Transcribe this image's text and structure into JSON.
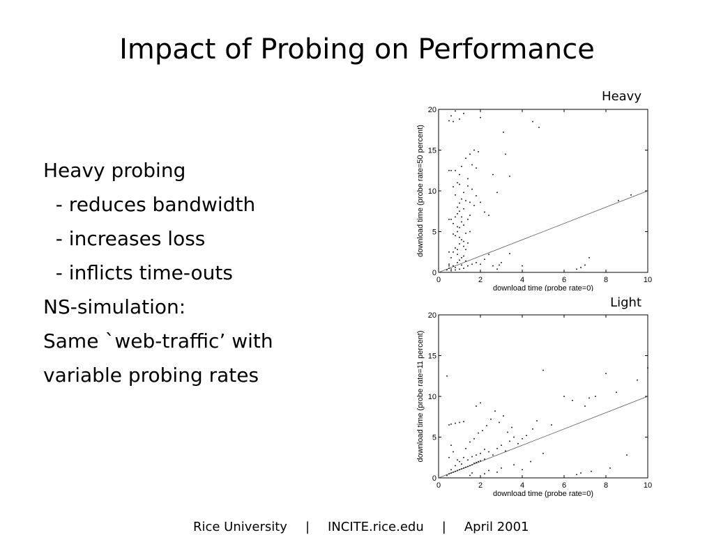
{
  "slide": {
    "title": "Impact of Probing on Performance",
    "bullets": [
      "Heavy probing",
      "  - reduces bandwidth",
      "  - increases loss",
      "  - inflicts time-outs",
      "",
      "NS-simulation:",
      "Same `web-traffic’ with",
      "variable probing rates"
    ],
    "footer": {
      "left": "Rice University",
      "separator": "|",
      "middle": "INCITE.rice.edu",
      "right": "April 2001"
    }
  },
  "chart_data": [
    {
      "type": "scatter",
      "caption": "Heavy",
      "xlabel": "download time (probe rate=0)",
      "ylabel": "download time (probe rate=50 percent)",
      "xlim": [
        0,
        10
      ],
      "ylim": [
        0,
        20
      ],
      "xticks": [
        0,
        2,
        4,
        6,
        8,
        10
      ],
      "yticks": [
        0,
        5,
        10,
        15,
        20
      ],
      "reference_line": {
        "from": [
          0,
          0
        ],
        "to": [
          10,
          10
        ]
      },
      "points": [
        [
          0.4,
          0.3
        ],
        [
          0.5,
          0.5
        ],
        [
          0.6,
          0.4
        ],
        [
          0.7,
          0.8
        ],
        [
          0.8,
          0.6
        ],
        [
          0.9,
          1.2
        ],
        [
          1.0,
          1.5
        ],
        [
          1.1,
          0.9
        ],
        [
          1.2,
          2.0
        ],
        [
          0.5,
          1.0
        ],
        [
          0.6,
          1.8
        ],
        [
          0.7,
          2.5
        ],
        [
          0.8,
          3.0
        ],
        [
          0.9,
          2.2
        ],
        [
          1.0,
          3.5
        ],
        [
          1.1,
          4.0
        ],
        [
          1.2,
          3.2
        ],
        [
          1.3,
          2.8
        ],
        [
          0.8,
          4.5
        ],
        [
          0.9,
          5.0
        ],
        [
          1.0,
          5.5
        ],
        [
          0.7,
          6.0
        ],
        [
          0.6,
          6.5
        ],
        [
          0.8,
          6.8
        ],
        [
          0.9,
          7.2
        ],
        [
          1.0,
          7.5
        ],
        [
          1.1,
          6.2
        ],
        [
          1.2,
          5.8
        ],
        [
          1.3,
          4.8
        ],
        [
          1.4,
          3.6
        ],
        [
          0.9,
          8.0
        ],
        [
          1.0,
          8.5
        ],
        [
          1.1,
          9.0
        ],
        [
          0.8,
          9.5
        ],
        [
          1.2,
          7.8
        ],
        [
          1.3,
          8.8
        ],
        [
          1.4,
          6.5
        ],
        [
          1.5,
          5.0
        ],
        [
          0.7,
          10.5
        ],
        [
          0.9,
          11.0
        ],
        [
          1.0,
          12.0
        ],
        [
          0.8,
          12.5
        ],
        [
          0.6,
          12.5
        ],
        [
          1.1,
          13.0
        ],
        [
          1.3,
          14.0
        ],
        [
          1.5,
          14.5
        ],
        [
          1.7,
          15.0
        ],
        [
          1.9,
          14.8
        ],
        [
          1.6,
          13.2
        ],
        [
          1.8,
          12.8
        ],
        [
          1.4,
          11.5
        ],
        [
          1.6,
          10.2
        ],
        [
          1.8,
          9.4
        ],
        [
          2.0,
          8.6
        ],
        [
          2.2,
          7.4
        ],
        [
          2.4,
          7.0
        ],
        [
          2.6,
          12.0
        ],
        [
          2.8,
          9.8
        ],
        [
          3.2,
          14.5
        ],
        [
          3.4,
          11.8
        ],
        [
          3.1,
          17.2
        ],
        [
          4.8,
          17.8
        ],
        [
          4.5,
          18.5
        ],
        [
          2.0,
          19.0
        ],
        [
          1.2,
          19.5
        ],
        [
          0.8,
          19.8
        ],
        [
          0.6,
          19.2
        ],
        [
          0.5,
          18.6
        ],
        [
          0.7,
          18.5
        ],
        [
          1.0,
          18.8
        ],
        [
          0.5,
          6.5
        ],
        [
          0.5,
          12.5
        ],
        [
          0.5,
          2.5
        ],
        [
          0.5,
          0.8
        ],
        [
          0.6,
          0.2
        ],
        [
          0.8,
          0.3
        ],
        [
          1.0,
          0.4
        ],
        [
          1.2,
          0.5
        ],
        [
          1.4,
          0.8
        ],
        [
          1.6,
          1.0
        ],
        [
          1.8,
          1.2
        ],
        [
          2.0,
          1.0
        ],
        [
          2.2,
          1.6
        ],
        [
          2.6,
          0.8
        ],
        [
          2.9,
          0.9
        ],
        [
          2.8,
          0.4
        ],
        [
          3.4,
          2.3
        ],
        [
          4.0,
          0.8
        ],
        [
          3.0,
          1.2
        ],
        [
          2.4,
          2.2
        ],
        [
          6.8,
          0.6
        ],
        [
          7.0,
          0.9
        ],
        [
          6.6,
          0.4
        ],
        [
          7.2,
          1.8
        ],
        [
          8.6,
          8.8
        ],
        [
          9.2,
          9.5
        ],
        [
          1.1,
          1.8
        ],
        [
          1.3,
          1.4
        ],
        [
          0.9,
          2.8
        ],
        [
          1.2,
          3.8
        ],
        [
          1.0,
          4.3
        ],
        [
          0.7,
          4.7
        ],
        [
          0.9,
          5.6
        ],
        [
          1.1,
          6.8
        ],
        [
          1.5,
          7.0
        ],
        [
          1.7,
          8.2
        ],
        [
          1.5,
          8.6
        ],
        [
          1.2,
          9.8
        ],
        [
          1.4,
          10.6
        ],
        [
          1.0,
          10.8
        ]
      ]
    },
    {
      "type": "scatter",
      "caption": "Light",
      "xlabel": "download time (probe rate=0)",
      "ylabel": "download time (probe rate=11 percent)",
      "xlim": [
        0,
        10
      ],
      "ylim": [
        0,
        20
      ],
      "xticks": [
        0,
        2,
        4,
        6,
        8,
        10
      ],
      "yticks": [
        0,
        5,
        10,
        15,
        20
      ],
      "reference_line": {
        "from": [
          0,
          0
        ],
        "to": [
          10,
          10
        ]
      },
      "points": [
        [
          0.4,
          0.3
        ],
        [
          0.5,
          0.5
        ],
        [
          0.6,
          0.6
        ],
        [
          0.7,
          0.7
        ],
        [
          0.8,
          0.8
        ],
        [
          0.9,
          0.9
        ],
        [
          1.0,
          1.0
        ],
        [
          1.1,
          1.1
        ],
        [
          1.2,
          1.2
        ],
        [
          1.3,
          1.3
        ],
        [
          1.4,
          1.4
        ],
        [
          1.5,
          1.5
        ],
        [
          1.6,
          1.6
        ],
        [
          1.7,
          1.8
        ],
        [
          1.8,
          1.9
        ],
        [
          1.9,
          2.0
        ],
        [
          2.0,
          2.1
        ],
        [
          2.2,
          2.3
        ],
        [
          0.6,
          1.0
        ],
        [
          0.8,
          1.5
        ],
        [
          1.0,
          2.0
        ],
        [
          1.2,
          2.5
        ],
        [
          0.9,
          2.2
        ],
        [
          1.1,
          1.7
        ],
        [
          1.4,
          2.2
        ],
        [
          1.6,
          2.6
        ],
        [
          1.8,
          2.8
        ],
        [
          2.0,
          3.0
        ],
        [
          2.2,
          3.5
        ],
        [
          2.4,
          3.2
        ],
        [
          2.6,
          2.8
        ],
        [
          2.8,
          3.6
        ],
        [
          3.0,
          4.0
        ],
        [
          3.2,
          3.3
        ],
        [
          3.4,
          4.5
        ],
        [
          3.6,
          5.0
        ],
        [
          3.8,
          4.2
        ],
        [
          4.0,
          4.8
        ],
        [
          4.2,
          5.2
        ],
        [
          4.5,
          6.0
        ],
        [
          0.5,
          6.5
        ],
        [
          0.6,
          6.6
        ],
        [
          0.8,
          6.7
        ],
        [
          1.0,
          6.8
        ],
        [
          1.2,
          6.9
        ],
        [
          0.7,
          3.2
        ],
        [
          1.3,
          3.6
        ],
        [
          1.5,
          4.4
        ],
        [
          1.7,
          4.8
        ],
        [
          1.9,
          5.5
        ],
        [
          2.1,
          5.8
        ],
        [
          2.3,
          6.4
        ],
        [
          2.5,
          7.2
        ],
        [
          2.7,
          8.2
        ],
        [
          2.9,
          6.8
        ],
        [
          3.1,
          7.6
        ],
        [
          3.3,
          5.6
        ],
        [
          3.5,
          6.2
        ],
        [
          1.8,
          8.8
        ],
        [
          2.0,
          9.2
        ],
        [
          4.7,
          7.0
        ],
        [
          5.0,
          13.2
        ],
        [
          5.4,
          6.5
        ],
        [
          6.0,
          10.0
        ],
        [
          6.4,
          9.5
        ],
        [
          7.0,
          8.8
        ],
        [
          7.2,
          9.8
        ],
        [
          7.5,
          10.0
        ],
        [
          8.0,
          12.8
        ],
        [
          8.5,
          10.5
        ],
        [
          9.0,
          2.8
        ],
        [
          9.5,
          12.0
        ],
        [
          10.0,
          13.5
        ],
        [
          6.6,
          0.4
        ],
        [
          6.8,
          0.6
        ],
        [
          7.3,
          0.8
        ],
        [
          8.2,
          1.2
        ],
        [
          0.4,
          12.5
        ],
        [
          1.6,
          0.6
        ],
        [
          2.4,
          0.9
        ],
        [
          3.0,
          1.2
        ],
        [
          3.6,
          1.6
        ],
        [
          4.4,
          2.0
        ],
        [
          5.0,
          3.0
        ],
        [
          1.5,
          0.3
        ],
        [
          2.2,
          0.5
        ],
        [
          2.8,
          0.7
        ],
        [
          4.0,
          1.0
        ],
        [
          0.5,
          2.5
        ],
        [
          0.6,
          4.0
        ]
      ]
    }
  ]
}
